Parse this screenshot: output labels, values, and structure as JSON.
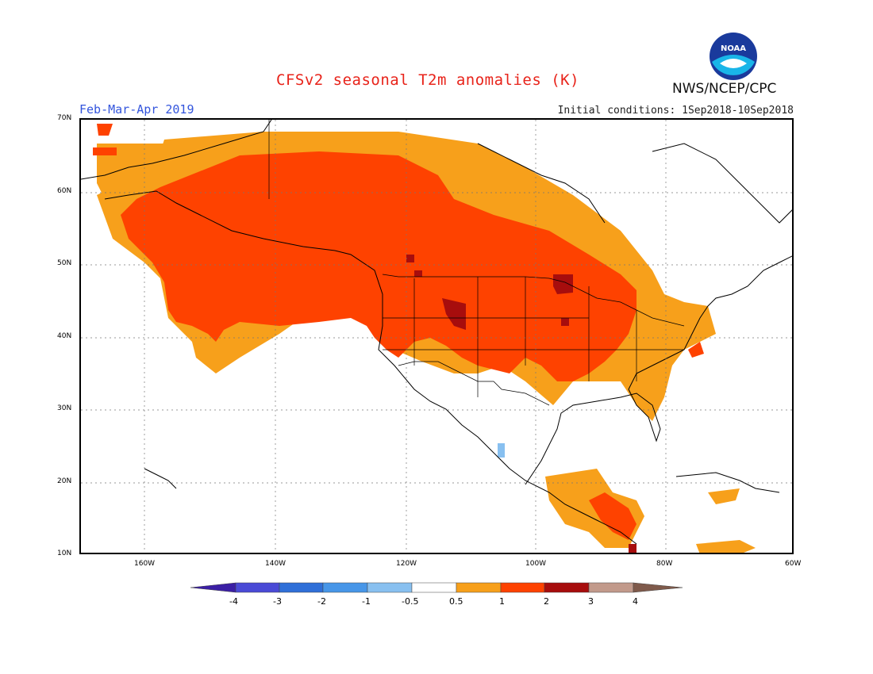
{
  "header": {
    "title": "CFSv2 seasonal T2m anomalies (K)",
    "season": "Feb-Mar-Apr 2019",
    "initial_conditions": "Initial conditions: 1Sep2018-10Sep2018",
    "agency": "NWS/NCEP/CPC",
    "logo_text": "NOAA"
  },
  "axes": {
    "lat_labels": [
      "70N",
      "60N",
      "50N",
      "40N",
      "30N",
      "20N",
      "10N"
    ],
    "lon_labels": [
      "160W",
      "140W",
      "120W",
      "100W",
      "80W",
      "60W"
    ]
  },
  "colorbar": {
    "labels": [
      "-4",
      "-3",
      "-2",
      "-1",
      "-0.5",
      "0.5",
      "1",
      "2",
      "3",
      "4"
    ],
    "colors": [
      "#3b1fa5",
      "#4a4ad6",
      "#2f6fd8",
      "#4796e8",
      "#88c0f0",
      "#ffffff",
      "#f7a01b",
      "#fe4200",
      "#a70d0d",
      "#c29a8b",
      "#7f5a4b"
    ]
  },
  "legend_colors": {
    "0.5to1": "#f7a01b",
    "1to2": "#fe4200",
    "2to3": "#a70d0d",
    "neg": "#88c0f0"
  }
}
